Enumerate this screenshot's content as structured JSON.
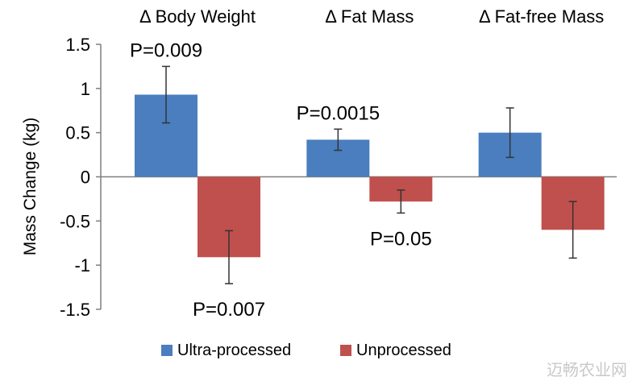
{
  "chart_data": {
    "type": "bar",
    "categories": [
      "Δ Body Weight",
      "Δ Fat Mass",
      "Δ Fat-free Mass"
    ],
    "series": [
      {
        "name": "Ultra-processed",
        "color": "#4a7ebf",
        "values": [
          0.93,
          0.42,
          0.5
        ],
        "errors": [
          0.32,
          0.12,
          0.28
        ]
      },
      {
        "name": "Unprocessed",
        "color": "#c0504d",
        "values": [
          -0.91,
          -0.28,
          -0.6
        ],
        "errors": [
          0.3,
          0.13,
          0.32
        ]
      }
    ],
    "ylabel": "Mass Change (kg)",
    "xlabel": "",
    "title": "",
    "ylim": [
      -1.5,
      1.5
    ],
    "yticks": [
      1.5,
      1,
      0.5,
      0,
      -0.5,
      -1,
      -1.5
    ],
    "ytick_labels": [
      "1.5",
      "1",
      "0.5",
      "0",
      "-0.5",
      "-1",
      "-1.5"
    ],
    "grid": false,
    "legend": "bottom",
    "annotations": [
      {
        "text": "P=0.009",
        "category": 0,
        "series": 0
      },
      {
        "text": "P=0.007",
        "category": 0,
        "series": 1
      },
      {
        "text": "P=0.0015",
        "category": 1,
        "series": 0
      },
      {
        "text": "P=0.05",
        "category": 1,
        "series": 1
      }
    ]
  },
  "watermark": "迈畅农业网"
}
